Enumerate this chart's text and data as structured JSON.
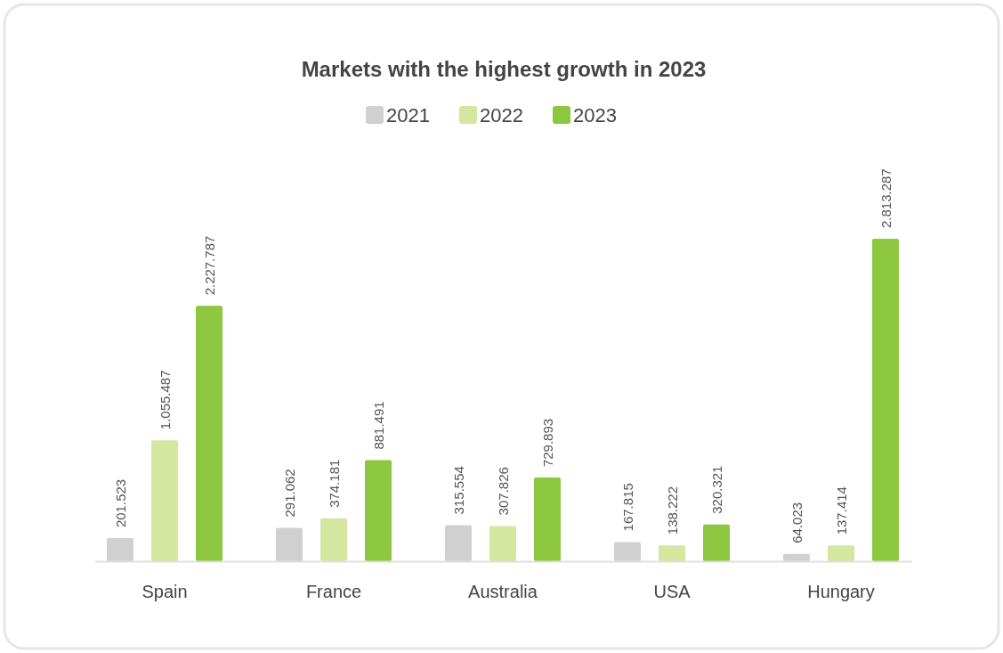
{
  "chart_data": {
    "type": "bar",
    "title": "Markets with the highest growth in 2023",
    "categories": [
      "Spain",
      "France",
      "Australia",
      "USA",
      "Hungary"
    ],
    "legend": "top",
    "series": [
      {
        "name": "2021",
        "color": "#d0d0d0",
        "values": [
          201523,
          291062,
          315554,
          167815,
          64023
        ],
        "value_labels": [
          "201.523",
          "291.062",
          "315.554",
          "167.815",
          "64.023"
        ]
      },
      {
        "name": "2022",
        "color": "#d4e6a0",
        "values": [
          1055487,
          374181,
          307826,
          138222,
          137414
        ],
        "value_labels": [
          "1.055.487",
          "374.181",
          "307.826",
          "138.222",
          "137.414"
        ]
      },
      {
        "name": "2023",
        "color": "#8dc63f",
        "values": [
          2227787,
          881491,
          729893,
          320321,
          2813287
        ],
        "value_labels": [
          "2.227.787",
          "881.491",
          "729.893",
          "320.321",
          "2.813.287"
        ]
      }
    ]
  }
}
